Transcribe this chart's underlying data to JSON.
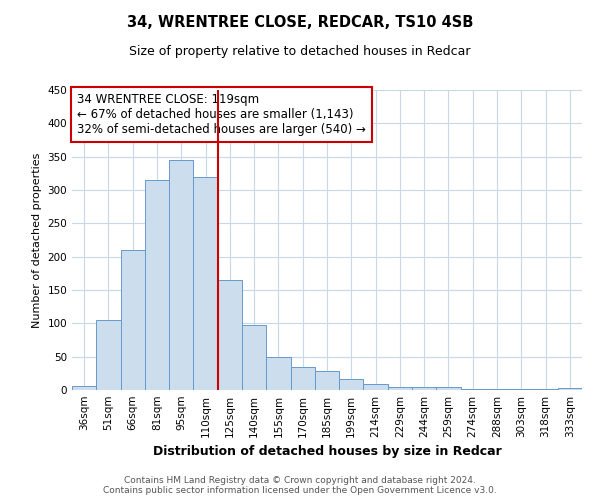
{
  "title": "34, WRENTREE CLOSE, REDCAR, TS10 4SB",
  "subtitle": "Size of property relative to detached houses in Redcar",
  "xlabel": "Distribution of detached houses by size in Redcar",
  "ylabel": "Number of detached properties",
  "categories": [
    "36sqm",
    "51sqm",
    "66sqm",
    "81sqm",
    "95sqm",
    "110sqm",
    "125sqm",
    "140sqm",
    "155sqm",
    "170sqm",
    "185sqm",
    "199sqm",
    "214sqm",
    "229sqm",
    "244sqm",
    "259sqm",
    "274sqm",
    "288sqm",
    "303sqm",
    "318sqm",
    "333sqm"
  ],
  "values": [
    6,
    105,
    210,
    315,
    345,
    320,
    165,
    97,
    50,
    35,
    29,
    17,
    9,
    5,
    5,
    4,
    2,
    1,
    1,
    1,
    3
  ],
  "bar_color": "#ccdded",
  "bar_edge_color": "#6699cc",
  "grid_color": "#c8d8e8",
  "vline_x": 5.5,
  "vline_color": "#cc0000",
  "annotation_box_text": "34 WRENTREE CLOSE: 119sqm\n← 67% of detached houses are smaller (1,143)\n32% of semi-detached houses are larger (540) →",
  "annotation_box_color": "#cc0000",
  "annotation_text_fontsize": 8.5,
  "ylim": [
    0,
    450
  ],
  "yticks": [
    0,
    50,
    100,
    150,
    200,
    250,
    300,
    350,
    400,
    450
  ],
  "footnote": "Contains HM Land Registry data © Crown copyright and database right 2024.\nContains public sector information licensed under the Open Government Licence v3.0.",
  "title_fontsize": 10.5,
  "subtitle_fontsize": 9,
  "xlabel_fontsize": 9,
  "ylabel_fontsize": 8,
  "tick_fontsize": 7.5,
  "footnote_fontsize": 6.5
}
